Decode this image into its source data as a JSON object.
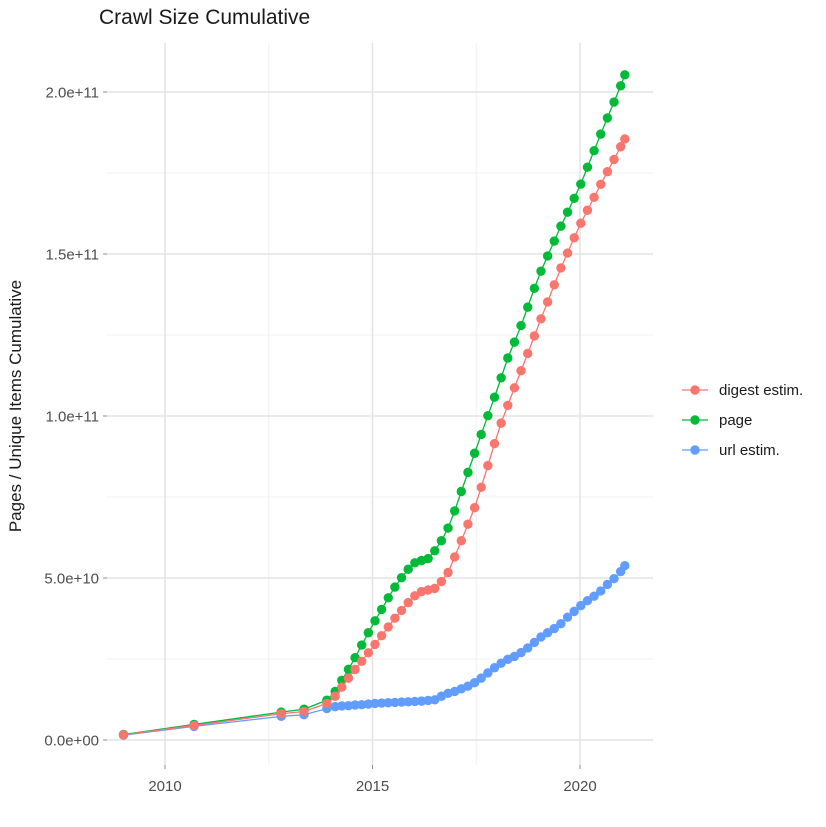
{
  "title": "Crawl Size Cumulative",
  "y_axis": {
    "label": "Pages / Unique Items Cumulative",
    "ticks": [
      {
        "value": 0,
        "label": "0.0e+00"
      },
      {
        "value": 50,
        "label": "5.0e+10"
      },
      {
        "value": 100,
        "label": "1.0e+11"
      },
      {
        "value": 150,
        "label": "1.5e+11"
      },
      {
        "value": 200,
        "label": "2.0e+11"
      }
    ],
    "minor_ticks": [
      25,
      75,
      125,
      175
    ]
  },
  "x_axis": {
    "ticks": [
      {
        "value": 2010,
        "label": "2010"
      },
      {
        "value": 2015,
        "label": "2015"
      },
      {
        "value": 2020,
        "label": "2020"
      }
    ],
    "minor_ticks": [
      2012.5,
      2017.5
    ]
  },
  "legend": {
    "items": [
      {
        "name": "digest estim.",
        "color": "#F8766D"
      },
      {
        "name": "page",
        "color": "#00BA38"
      },
      {
        "name": "url estim.",
        "color": "#619CFF"
      }
    ]
  },
  "colors": {
    "grid_major": "#e3e3e3",
    "grid_minor": "#f0f0f0",
    "tick_mark": "#8a8a8a",
    "background": "#ffffff"
  },
  "chart_data": {
    "type": "line",
    "title": "Crawl Size Cumulative",
    "xlabel": "",
    "ylabel": "Pages / Unique Items Cumulative",
    "values_unit": "1e9 (billions); axis shown in scientific notation",
    "xlim": [
      2008.4,
      2021.8
    ],
    "ylim": [
      0,
      215000000000.0
    ],
    "grid": true,
    "legend_position": "right",
    "marker": "point-with-line",
    "series": [
      {
        "name": "digest estim.",
        "color": "#F8766D",
        "points": [
          [
            2009,
            1.6
          ],
          [
            2010.7,
            4.5
          ],
          [
            2012.8,
            8.1
          ],
          [
            2013.35,
            8.8
          ],
          [
            2013.9,
            11.3
          ],
          [
            2014.1,
            13.5
          ],
          [
            2014.26,
            16.3
          ],
          [
            2014.42,
            19.1
          ],
          [
            2014.58,
            21.8
          ],
          [
            2014.74,
            24.3
          ],
          [
            2014.9,
            26.9
          ],
          [
            2015.06,
            29.5
          ],
          [
            2015.22,
            32.2
          ],
          [
            2015.38,
            34.9
          ],
          [
            2015.54,
            37.6
          ],
          [
            2015.7,
            40
          ],
          [
            2015.86,
            42.4
          ],
          [
            2016.02,
            44.5
          ],
          [
            2016.18,
            45.8
          ],
          [
            2016.34,
            46.3
          ],
          [
            2016.5,
            46.8
          ],
          [
            2016.66,
            48.9
          ],
          [
            2016.82,
            51.7
          ],
          [
            2016.98,
            56.5
          ],
          [
            2017.14,
            61.5
          ],
          [
            2017.3,
            66.6
          ],
          [
            2017.46,
            71.7
          ],
          [
            2017.62,
            78
          ],
          [
            2017.78,
            84.7
          ],
          [
            2017.94,
            91.5
          ],
          [
            2018.1,
            97.8
          ],
          [
            2018.26,
            103.3
          ],
          [
            2018.42,
            108.7
          ],
          [
            2018.58,
            114
          ],
          [
            2018.74,
            119.3
          ],
          [
            2018.9,
            124.7
          ],
          [
            2019.06,
            130
          ],
          [
            2019.22,
            135.2
          ],
          [
            2019.38,
            140.5
          ],
          [
            2019.54,
            145.7
          ],
          [
            2019.7,
            150.3
          ],
          [
            2019.86,
            155
          ],
          [
            2020.02,
            159.5
          ],
          [
            2020.18,
            163.5
          ],
          [
            2020.34,
            167.5
          ],
          [
            2020.5,
            171.5
          ],
          [
            2020.66,
            175.4
          ],
          [
            2020.82,
            179.2
          ],
          [
            2020.98,
            183.1
          ],
          [
            2021.08,
            185.5
          ]
        ]
      },
      {
        "name": "page",
        "color": "#00BA38",
        "points": [
          [
            2009,
            1.7
          ],
          [
            2010.7,
            4.8
          ],
          [
            2012.8,
            8.6
          ],
          [
            2013.35,
            9.5
          ],
          [
            2013.9,
            12.3
          ],
          [
            2014.1,
            15
          ],
          [
            2014.26,
            18.4
          ],
          [
            2014.42,
            21.8
          ],
          [
            2014.58,
            25.4
          ],
          [
            2014.74,
            29.3
          ],
          [
            2014.9,
            33.1
          ],
          [
            2015.06,
            36.8
          ],
          [
            2015.22,
            40.3
          ],
          [
            2015.38,
            43.9
          ],
          [
            2015.54,
            47.2
          ],
          [
            2015.7,
            50.1
          ],
          [
            2015.86,
            52.7
          ],
          [
            2016.02,
            54.7
          ],
          [
            2016.18,
            55.4
          ],
          [
            2016.34,
            56
          ],
          [
            2016.5,
            58.4
          ],
          [
            2016.66,
            61.5
          ],
          [
            2016.82,
            65.4
          ],
          [
            2016.98,
            70.7
          ],
          [
            2017.14,
            76.7
          ],
          [
            2017.3,
            82.6
          ],
          [
            2017.46,
            88.5
          ],
          [
            2017.62,
            94.3
          ],
          [
            2017.78,
            100.1
          ],
          [
            2017.94,
            105.8
          ],
          [
            2018.1,
            111.8
          ],
          [
            2018.26,
            117.9
          ],
          [
            2018.42,
            122.8
          ],
          [
            2018.58,
            127.9
          ],
          [
            2018.74,
            133.6
          ],
          [
            2018.9,
            139.4
          ],
          [
            2019.06,
            144.7
          ],
          [
            2019.22,
            149.4
          ],
          [
            2019.38,
            154
          ],
          [
            2019.54,
            158.6
          ],
          [
            2019.7,
            162.9
          ],
          [
            2019.86,
            167.2
          ],
          [
            2020.02,
            171.6
          ],
          [
            2020.18,
            176.8
          ],
          [
            2020.34,
            181.9
          ],
          [
            2020.5,
            187
          ],
          [
            2020.66,
            192
          ],
          [
            2020.82,
            196.9
          ],
          [
            2020.98,
            201.9
          ],
          [
            2021.08,
            205.3
          ]
        ]
      },
      {
        "name": "url estim.",
        "color": "#619CFF",
        "points": [
          [
            2009,
            1.5
          ],
          [
            2010.7,
            4.2
          ],
          [
            2012.8,
            7.3
          ],
          [
            2013.35,
            7.8
          ],
          [
            2013.9,
            9.7
          ],
          [
            2014.1,
            10.3
          ],
          [
            2014.26,
            10.5
          ],
          [
            2014.42,
            10.6
          ],
          [
            2014.58,
            10.8
          ],
          [
            2014.74,
            10.9
          ],
          [
            2014.9,
            11.1
          ],
          [
            2015.06,
            11.3
          ],
          [
            2015.22,
            11.4
          ],
          [
            2015.38,
            11.5
          ],
          [
            2015.54,
            11.6
          ],
          [
            2015.7,
            11.7
          ],
          [
            2015.86,
            11.8
          ],
          [
            2016.02,
            11.9
          ],
          [
            2016.18,
            12
          ],
          [
            2016.34,
            12.2
          ],
          [
            2016.5,
            12.4
          ],
          [
            2016.66,
            13.5
          ],
          [
            2016.82,
            14.4
          ],
          [
            2016.98,
            15
          ],
          [
            2017.14,
            15.8
          ],
          [
            2017.3,
            16.6
          ],
          [
            2017.46,
            17.7
          ],
          [
            2017.62,
            19.1
          ],
          [
            2017.78,
            20.7
          ],
          [
            2017.94,
            22.3
          ],
          [
            2018.1,
            23.7
          ],
          [
            2018.26,
            24.9
          ],
          [
            2018.42,
            25.8
          ],
          [
            2018.58,
            27
          ],
          [
            2018.74,
            28.4
          ],
          [
            2018.9,
            30.1
          ],
          [
            2019.06,
            31.8
          ],
          [
            2019.22,
            33.1
          ],
          [
            2019.38,
            34.4
          ],
          [
            2019.54,
            35.9
          ],
          [
            2019.7,
            37.9
          ],
          [
            2019.86,
            39.7
          ],
          [
            2020.02,
            41.5
          ],
          [
            2020.18,
            43
          ],
          [
            2020.34,
            44.4
          ],
          [
            2020.5,
            46
          ],
          [
            2020.66,
            48
          ],
          [
            2020.82,
            49.8
          ],
          [
            2020.98,
            52
          ],
          [
            2021.08,
            53.8
          ]
        ]
      }
    ]
  }
}
